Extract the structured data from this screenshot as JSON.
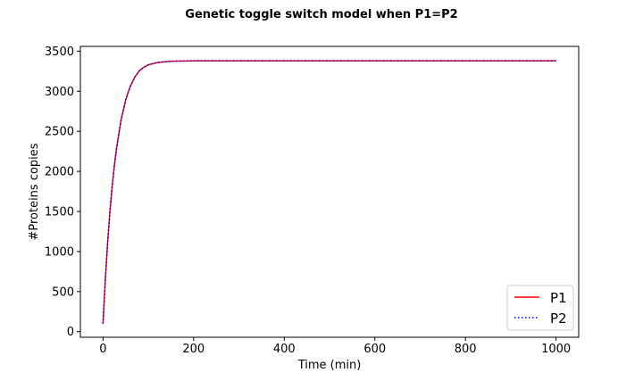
{
  "chart_data": {
    "type": "line",
    "title": "Genetic toggle switch model when P1=P2",
    "xlabel": "Time (min)",
    "ylabel": "#Proteins copies",
    "xlim": [
      -50,
      1050
    ],
    "ylim": [
      -70,
      3560
    ],
    "xticks": [
      0,
      200,
      400,
      600,
      800,
      1000
    ],
    "yticks": [
      0,
      500,
      1000,
      1500,
      2000,
      2500,
      3000,
      3500
    ],
    "grid": false,
    "legend_position": "lower-right",
    "x": [
      0,
      5,
      10,
      15,
      20,
      25,
      30,
      40,
      50,
      60,
      70,
      80,
      90,
      100,
      120,
      140,
      160,
      180,
      200,
      250,
      300,
      400,
      500,
      600,
      700,
      800,
      900,
      1000
    ],
    "series": [
      {
        "name": "P1",
        "color": "#ff0000",
        "style": "solid",
        "values": [
          100,
          640,
          1100,
          1480,
          1800,
          2070,
          2295,
          2645,
          2890,
          3060,
          3175,
          3255,
          3300,
          3330,
          3358,
          3370,
          3376,
          3378,
          3380,
          3381,
          3381,
          3381,
          3381,
          3381,
          3381,
          3381,
          3381,
          3381
        ]
      },
      {
        "name": "P2",
        "color": "#0000ff",
        "style": "dotted",
        "values": [
          100,
          640,
          1100,
          1480,
          1800,
          2070,
          2295,
          2645,
          2890,
          3060,
          3175,
          3255,
          3300,
          3330,
          3358,
          3370,
          3376,
          3378,
          3380,
          3381,
          3381,
          3381,
          3381,
          3381,
          3381,
          3381,
          3381,
          3381
        ]
      }
    ]
  }
}
